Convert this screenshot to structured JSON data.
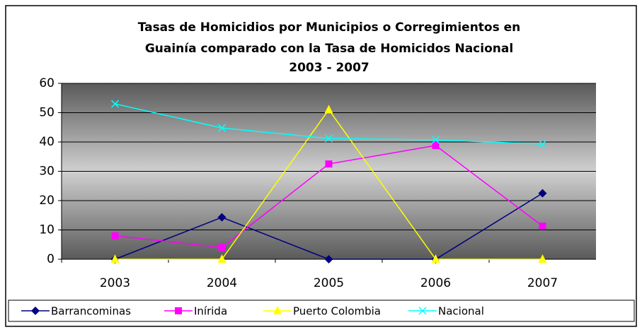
{
  "chart_data": {
    "type": "line",
    "title": [
      "Tasas de Homicidios por Municipios o Corregimientos en",
      "Guainía comparado con la Tasa de Homicidos Nacional",
      "2003 - 2007"
    ],
    "categories": [
      "2003",
      "2004",
      "2005",
      "2006",
      "2007"
    ],
    "series": [
      {
        "name": "Barrancominas",
        "color": "#000080",
        "marker": "diamond",
        "values": [
          0,
          14.3,
          0,
          0,
          22.5
        ]
      },
      {
        "name": "Inírida",
        "color": "#ff00ff",
        "marker": "square",
        "values": [
          8,
          4,
          32.5,
          38.8,
          11.3
        ]
      },
      {
        "name": "Puerto Colombia",
        "color": "#ffff00",
        "marker": "triangle",
        "values": [
          0,
          0,
          51,
          0,
          0
        ]
      },
      {
        "name": "Nacional",
        "color": "#00ffff",
        "marker": "x",
        "values": [
          53,
          44.8,
          41.2,
          40.7,
          39.3
        ]
      }
    ],
    "ylim": [
      0,
      60
    ],
    "yticks": [
      0,
      10,
      20,
      30,
      40,
      50,
      60
    ],
    "grid": true,
    "legend": "bottom"
  }
}
